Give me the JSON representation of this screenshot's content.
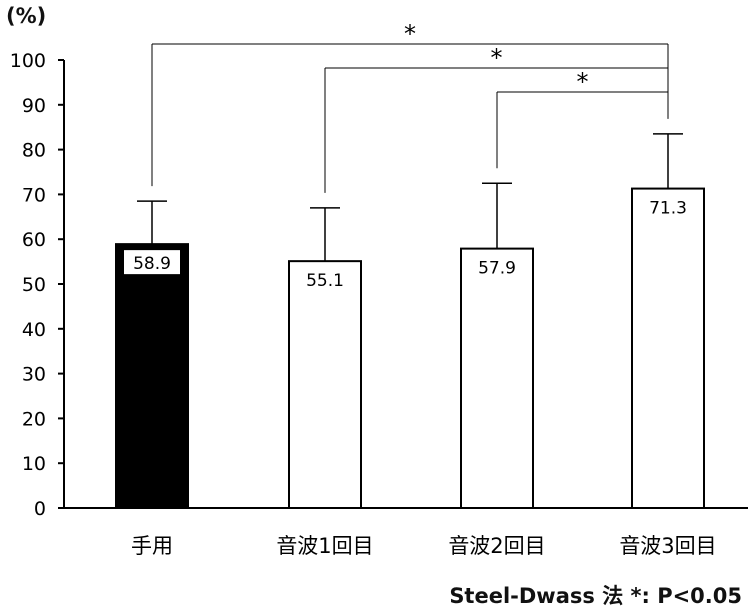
{
  "chart_data": {
    "type": "bar",
    "ylabel": "(%)",
    "ylim": [
      0,
      100
    ],
    "yticks": [
      0,
      10,
      20,
      30,
      40,
      50,
      60,
      70,
      80,
      90,
      100
    ],
    "grid": false,
    "categories": [
      "手用",
      "音波1回目",
      "音波2回目",
      "音波3回目"
    ],
    "values": [
      58.9,
      55.1,
      57.9,
      71.3
    ],
    "value_labels": [
      "58.9",
      "55.1",
      "57.9",
      "71.3"
    ],
    "error_upper": [
      68.5,
      67.0,
      72.5,
      83.5
    ],
    "bar_fill": [
      "#000000",
      "#ffffff",
      "#ffffff",
      "#ffffff"
    ],
    "significance": [
      {
        "from": 0,
        "to": 3,
        "label": "*"
      },
      {
        "from": 1,
        "to": 3,
        "label": "*"
      },
      {
        "from": 2,
        "to": 3,
        "label": "*"
      }
    ],
    "footnote": "Steel-Dwass 法 *: P<0.05"
  }
}
